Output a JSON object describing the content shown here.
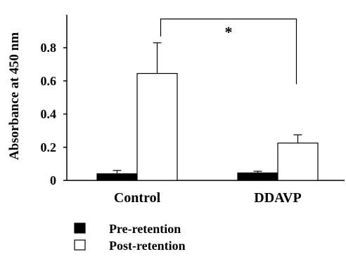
{
  "chart_data": {
    "type": "bar",
    "title": "",
    "xlabel": "",
    "ylabel": "Absorbance at 450 nm",
    "ylim": [
      0,
      0.8
    ],
    "yticks": [
      0,
      0.2,
      0.4,
      0.6,
      0.8
    ],
    "ytick_labels": [
      "0",
      "0.2",
      "0.4",
      "0.6",
      "0.8"
    ],
    "categories": [
      "Control",
      "DDAVP"
    ],
    "series": [
      {
        "name": "Pre-retention",
        "values": [
          0.04,
          0.045
        ],
        "errors": [
          0.02,
          0.01
        ],
        "color": "#000000"
      },
      {
        "name": "Post-retention",
        "values": [
          0.645,
          0.225
        ],
        "errors": [
          0.185,
          0.05
        ],
        "color": "#ffffff"
      }
    ],
    "annotation": {
      "text": "*",
      "between": [
        "Control",
        "DDAVP"
      ],
      "series": "Post-retention"
    },
    "grid": false,
    "legend_position": "bottom"
  }
}
